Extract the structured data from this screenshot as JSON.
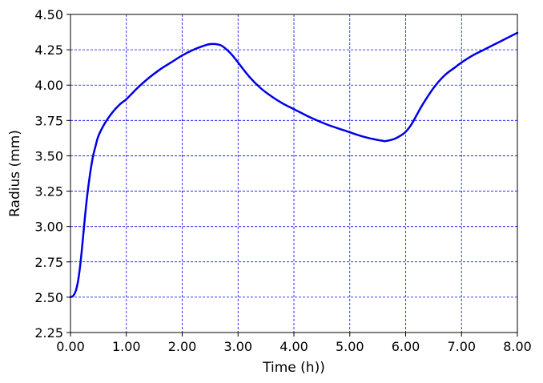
{
  "chart_data": {
    "type": "line",
    "title": "",
    "xlabel": "Time (h))",
    "ylabel": "Radius (mm)",
    "xlim": [
      0,
      8
    ],
    "ylim": [
      2.25,
      4.5
    ],
    "xticks": [
      0,
      1,
      2,
      3,
      4,
      5,
      6,
      7,
      8
    ],
    "xtick_labels": [
      "0.00",
      "1.00",
      "2.00",
      "3.00",
      "4.00",
      "5.00",
      "6.00",
      "7.00",
      "8.00"
    ],
    "yticks": [
      2.25,
      2.5,
      2.75,
      3.0,
      3.25,
      3.5,
      3.75,
      4.0,
      4.25,
      4.5
    ],
    "ytick_labels": [
      "2.25",
      "2.50",
      "2.75",
      "3.00",
      "3.25",
      "3.50",
      "3.75",
      "4.00",
      "4.25",
      "4.50"
    ],
    "grid": true,
    "grid_color": "#0000ff",
    "line_color": "#0000e6",
    "series": [
      {
        "x": [
          0.0,
          0.05,
          0.1,
          0.15,
          0.2,
          0.25,
          0.3,
          0.35,
          0.4,
          0.45,
          0.5,
          0.6,
          0.7,
          0.8,
          0.9,
          1.0,
          1.2,
          1.4,
          1.6,
          1.8,
          2.0,
          2.2,
          2.4,
          2.5,
          2.6,
          2.7,
          2.8,
          2.9,
          3.0,
          3.2,
          3.4,
          3.6,
          3.8,
          4.0,
          4.3,
          4.6,
          4.9,
          5.2,
          5.4,
          5.6,
          5.65,
          5.8,
          5.9,
          6.0,
          6.1,
          6.2,
          6.3,
          6.5,
          6.7,
          6.9,
          7.0,
          7.2,
          7.4,
          7.6,
          7.8,
          8.0
        ],
        "y": [
          2.5,
          2.51,
          2.55,
          2.65,
          2.82,
          3.03,
          3.22,
          3.37,
          3.49,
          3.57,
          3.64,
          3.72,
          3.78,
          3.83,
          3.87,
          3.9,
          3.98,
          4.05,
          4.11,
          4.16,
          4.21,
          4.25,
          4.28,
          4.29,
          4.29,
          4.28,
          4.25,
          4.21,
          4.16,
          4.06,
          3.98,
          3.92,
          3.87,
          3.83,
          3.77,
          3.72,
          3.68,
          3.64,
          3.62,
          3.605,
          3.605,
          3.62,
          3.64,
          3.67,
          3.72,
          3.79,
          3.86,
          3.98,
          4.07,
          4.13,
          4.16,
          4.21,
          4.25,
          4.29,
          4.33,
          4.37
        ]
      }
    ]
  }
}
